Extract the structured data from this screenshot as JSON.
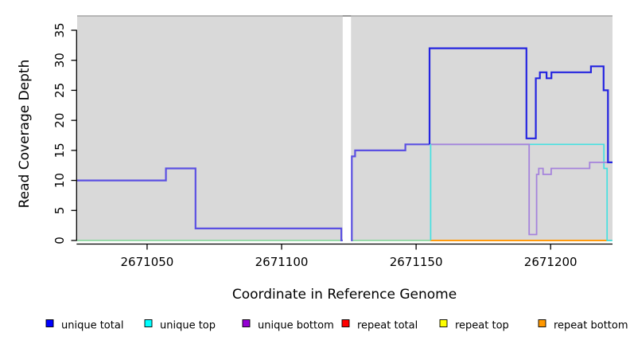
{
  "figure": {
    "bg": "#ffffff",
    "panel_bg": "#d9d9d9",
    "panel_top_line_color": "#a6a6a6",
    "panel_gap_stub_color": "#8d8d8d",
    "gap_color": "#ffffff",
    "axis_color": "#000000"
  },
  "chart_data": {
    "type": "line",
    "title": "",
    "xlabel": "Coordinate in Reference Genome",
    "ylabel": "Read Coverage Depth",
    "xlim": [
      2671024,
      2671223
    ],
    "ylim": [
      0,
      35
    ],
    "x_ticks": [
      2671050,
      2671100,
      2671150,
      2671200
    ],
    "y_ticks": [
      0,
      5,
      10,
      15,
      20,
      25,
      30,
      35
    ],
    "grid": false,
    "legend_position": "bottom",
    "gap_region": [
      2671122.7,
      2671125.8
    ],
    "series": [
      {
        "name": "zero coverage baseline",
        "color": "#7ed492",
        "width": 1.6,
        "paths": [
          [
            [
              2671024,
              0
            ],
            [
              2671122.7,
              0
            ]
          ],
          [
            [
              2671125.8,
              0
            ],
            [
              2671155.2,
              0
            ]
          ],
          [
            [
              2671221.1,
              0
            ],
            [
              2671222.9,
              0
            ]
          ]
        ]
      },
      {
        "name": "repeat bottom",
        "color": "#ff9b0f",
        "width": 2,
        "paths": [
          [
            [
              2671155.2,
              0
            ],
            [
              2671221.1,
              0
            ]
          ]
        ]
      },
      {
        "name": "repeat total",
        "color": "#ff0000",
        "width": 2,
        "paths": []
      },
      {
        "name": "repeat top",
        "color": "#ffff00",
        "width": 2,
        "paths": []
      },
      {
        "name": "unique top",
        "color": "#45e0e0",
        "width": 1.7,
        "paths": [
          [
            [
              2671155.4,
              0
            ],
            [
              2671155.4,
              16
            ],
            [
              2671219.8,
              16
            ],
            [
              2671219.8,
              12
            ],
            [
              2671221,
              12
            ],
            [
              2671221,
              0
            ],
            [
              2671222.9,
              0
            ]
          ]
        ]
      },
      {
        "name": "unique bottom",
        "color": "#a583dc",
        "width": 1.8,
        "paths": [
          [
            [
              2671155.6,
              16
            ],
            [
              2671192,
              16
            ],
            [
              2671192,
              1
            ],
            [
              2671194.8,
              1
            ],
            [
              2671194.8,
              11
            ],
            [
              2671195.6,
              11
            ],
            [
              2671195.6,
              12
            ],
            [
              2671197.2,
              12
            ],
            [
              2671197.2,
              11
            ],
            [
              2671200.2,
              11
            ],
            [
              2671200.2,
              12
            ],
            [
              2671214.5,
              12
            ],
            [
              2671214.5,
              13
            ],
            [
              2671223,
              13
            ]
          ]
        ]
      },
      {
        "name": "unique total and bottom overlap",
        "color": "#5b50e2",
        "width": 2.2,
        "paths": [
          [
            [
              2671024,
              10
            ],
            [
              2671057,
              10
            ],
            [
              2671057,
              12
            ],
            [
              2671068,
              12
            ],
            [
              2671068,
              2
            ],
            [
              2671122.2,
              2
            ],
            [
              2671122.2,
              0
            ],
            [
              2671122.7,
              0
            ]
          ],
          [
            [
              2671125.8,
              0
            ],
            [
              2671126.1,
              0
            ],
            [
              2671126.1,
              14
            ],
            [
              2671127.3,
              14
            ],
            [
              2671127.3,
              15
            ],
            [
              2671146,
              15
            ],
            [
              2671146,
              16
            ],
            [
              2671155,
              16
            ]
          ]
        ]
      },
      {
        "name": "unique total",
        "color": "#2424e0",
        "width": 2.2,
        "paths": [
          [
            [
              2671155,
              16
            ],
            [
              2671155,
              32
            ],
            [
              2671191,
              32
            ],
            [
              2671191,
              17
            ],
            [
              2671194.5,
              17
            ],
            [
              2671194.5,
              27
            ],
            [
              2671196,
              27
            ],
            [
              2671196,
              28
            ],
            [
              2671198.5,
              28
            ],
            [
              2671198.5,
              27
            ],
            [
              2671200.3,
              27
            ],
            [
              2671200.3,
              28
            ],
            [
              2671215,
              28
            ],
            [
              2671215,
              29
            ],
            [
              2671219.7,
              29
            ],
            [
              2671219.7,
              25
            ],
            [
              2671221.3,
              25
            ],
            [
              2671221.3,
              13
            ],
            [
              2671223,
              13
            ]
          ]
        ]
      }
    ]
  },
  "legend": {
    "items": [
      {
        "label": "unique total",
        "color": "#0000ff"
      },
      {
        "label": "unique top",
        "color": "#00ffff"
      },
      {
        "label": "unique bottom",
        "color": "#9400d3"
      },
      {
        "label": "repeat total",
        "color": "#ff0000"
      },
      {
        "label": "repeat top",
        "color": "#ffff00"
      },
      {
        "label": "repeat bottom",
        "color": "#ff9800"
      }
    ]
  }
}
